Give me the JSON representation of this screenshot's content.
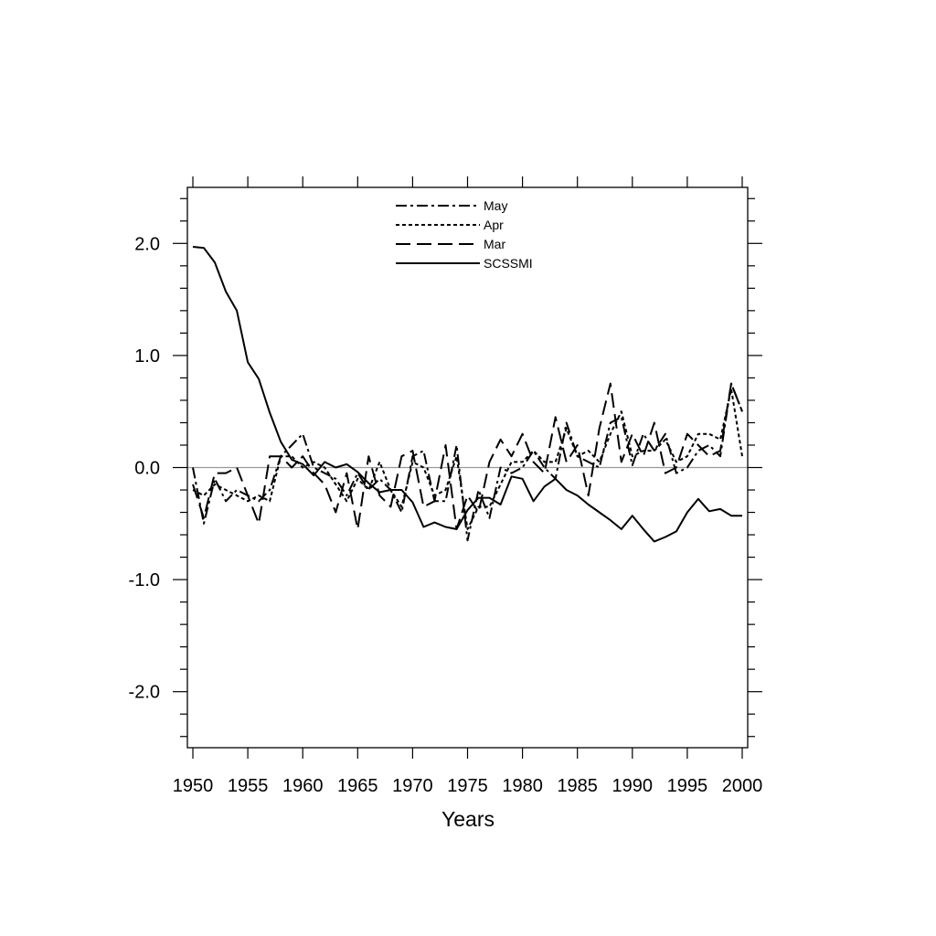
{
  "chart_data": {
    "type": "line",
    "title": "",
    "xlabel": "Years",
    "ylabel": "",
    "xlim": [
      1949.5,
      2000.5
    ],
    "ylim": [
      -2.5,
      2.5
    ],
    "x_ticks": [
      1950,
      1955,
      1960,
      1965,
      1970,
      1975,
      1980,
      1985,
      1990,
      1995,
      2000
    ],
    "x_tick_labels": [
      "1950",
      "1955",
      "1960",
      "1965",
      "1970",
      "1975",
      "1980",
      "1985",
      "1990",
      "1995",
      "2000"
    ],
    "y_ticks": [
      2.0,
      1.0,
      0.0,
      -1.0,
      -2.0
    ],
    "y_tick_labels": [
      "2.0",
      "1.0",
      "0.0",
      "-1.0",
      "-2.0"
    ],
    "reference_line": 0.0,
    "grid": false,
    "legend_position": "top-center",
    "x": [
      1950,
      1951,
      1952,
      1953,
      1954,
      1955,
      1956,
      1957,
      1958,
      1959,
      1960,
      1961,
      1962,
      1963,
      1964,
      1965,
      1966,
      1967,
      1968,
      1969,
      1970,
      1971,
      1972,
      1973,
      1974,
      1975,
      1976,
      1977,
      1978,
      1979,
      1980,
      1981,
      1982,
      1983,
      1984,
      1985,
      1986,
      1987,
      1988,
      1989,
      1990,
      1991,
      1992,
      1993,
      1994,
      1995,
      1996,
      1997,
      1998,
      1999,
      2000
    ],
    "series": [
      {
        "name": "May",
        "dash": "dash-dot",
        "values": [
          0.0,
          -0.5,
          -0.1,
          -0.3,
          -0.2,
          -0.25,
          -0.3,
          -0.2,
          0.1,
          0.2,
          0.3,
          0.0,
          -0.05,
          -0.1,
          -0.25,
          -0.05,
          -0.2,
          -0.1,
          -0.2,
          -0.4,
          0.1,
          0.15,
          -0.3,
          -0.3,
          0.2,
          -0.65,
          -0.2,
          -0.45,
          0.0,
          -0.05,
          0.0,
          0.15,
          0.0,
          -0.1,
          0.4,
          0.1,
          0.05,
          0.0,
          0.4,
          0.45,
          0.02,
          0.3,
          0.15,
          0.3,
          -0.05,
          0.0,
          0.15,
          0.2,
          0.1,
          0.75,
          0.5
        ]
      },
      {
        "name": "Apr",
        "dash": "dotted",
        "values": [
          -0.2,
          -0.25,
          -0.15,
          -0.2,
          -0.25,
          -0.3,
          -0.25,
          -0.3,
          0.1,
          0.1,
          0.0,
          0.05,
          0.0,
          -0.15,
          -0.3,
          -0.1,
          -0.2,
          0.05,
          -0.2,
          -0.35,
          0.05,
          0.0,
          -0.25,
          -0.2,
          0.1,
          -0.55,
          -0.35,
          -0.35,
          -0.15,
          0.05,
          0.05,
          0.15,
          0.05,
          0.05,
          0.35,
          0.1,
          0.15,
          0.05,
          0.3,
          0.5,
          0.1,
          0.15,
          0.15,
          0.25,
          0.05,
          0.1,
          0.3,
          0.3,
          0.25,
          0.7,
          0.1
        ]
      },
      {
        "name": "Mar",
        "dash": "long-dash",
        "values": [
          -0.15,
          -0.45,
          -0.05,
          -0.05,
          0.0,
          -0.25,
          -0.5,
          0.1,
          0.1,
          0.0,
          0.1,
          -0.05,
          -0.15,
          -0.4,
          -0.05,
          -0.55,
          0.1,
          -0.25,
          -0.35,
          0.1,
          0.15,
          -0.35,
          -0.3,
          0.2,
          -0.55,
          -0.25,
          -0.4,
          0.05,
          0.25,
          0.1,
          0.3,
          0.05,
          -0.05,
          0.45,
          0.05,
          0.2,
          -0.25,
          0.35,
          0.75,
          0.05,
          0.3,
          0.1,
          0.4,
          -0.05,
          0.0,
          0.3,
          0.2,
          0.1,
          0.15,
          0.75,
          0.5
        ]
      },
      {
        "name": "SCSSMI",
        "dash": "solid",
        "values": [
          1.97,
          1.96,
          1.83,
          1.57,
          1.4,
          0.94,
          0.79,
          0.49,
          0.23,
          0.07,
          0.03,
          -0.07,
          0.05,
          0.0,
          0.03,
          -0.04,
          -0.14,
          -0.22,
          -0.2,
          -0.2,
          -0.31,
          -0.53,
          -0.49,
          -0.53,
          -0.55,
          -0.38,
          -0.27,
          -0.27,
          -0.33,
          -0.08,
          -0.1,
          -0.3,
          -0.17,
          -0.1,
          -0.2,
          -0.25,
          -0.33,
          -0.4,
          -0.47,
          -0.55,
          -0.43,
          -0.55,
          -0.66,
          -0.62,
          -0.57,
          -0.4,
          -0.28,
          -0.39,
          -0.37,
          -0.43,
          -0.43
        ]
      }
    ]
  }
}
